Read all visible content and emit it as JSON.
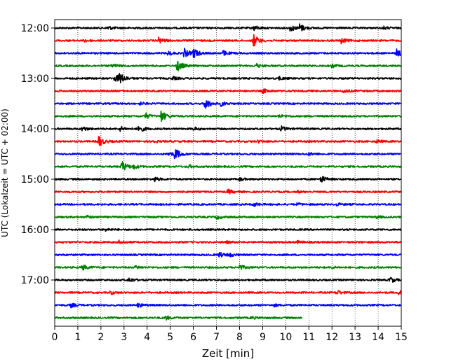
{
  "chart_data": {
    "type": "line",
    "title": "",
    "xlabel": "Zeit  [min]",
    "ylabel": "UTC (Lokalzeit = UTC + 02:00)",
    "xlim": [
      0,
      15
    ],
    "x_ticks": [
      "0",
      "1",
      "2",
      "3",
      "4",
      "5",
      "6",
      "7",
      "8",
      "9",
      "10",
      "11",
      "12",
      "13",
      "14",
      "15"
    ],
    "y_ticks": [
      {
        "label": "12:00",
        "row": 0
      },
      {
        "label": "13:00",
        "row": 4
      },
      {
        "label": "14:00",
        "row": 8
      },
      {
        "label": "15:00",
        "row": 12
      },
      {
        "label": "16:00",
        "row": 16
      },
      {
        "label": "17:00",
        "row": 20
      }
    ],
    "grid": "vertical dotted at each minute",
    "trace_colors": [
      "#000000",
      "#ff0000",
      "#0000ff",
      "#008000"
    ],
    "trace_minutes": 15,
    "traces": [
      {
        "start": "12:00",
        "events": [
          [
            2.3,
            0.5
          ],
          [
            8.6,
            0.7
          ],
          [
            10.2,
            0.9
          ],
          [
            10.6,
            1.0
          ],
          [
            14.2,
            0.4
          ]
        ]
      },
      {
        "start": "12:15",
        "events": [
          [
            1.3,
            0.3
          ],
          [
            4.5,
            0.8
          ],
          [
            8.6,
            1.7
          ],
          [
            12.4,
            0.7
          ]
        ]
      },
      {
        "start": "12:30",
        "events": [
          [
            4.9,
            0.5
          ],
          [
            5.6,
            1.2
          ],
          [
            6.0,
            1.3
          ],
          [
            7.3,
            0.6
          ],
          [
            14.8,
            1.0
          ]
        ]
      },
      {
        "start": "12:45",
        "events": [
          [
            2.5,
            0.5
          ],
          [
            5.3,
            1.6
          ],
          [
            8.7,
            0.6
          ],
          [
            12.0,
            0.4
          ]
        ]
      },
      {
        "start": "13:00",
        "events": [
          [
            2.6,
            1.1
          ],
          [
            2.8,
            1.3
          ],
          [
            5.1,
            0.4
          ],
          [
            9.7,
            0.4
          ]
        ]
      },
      {
        "start": "13:15",
        "events": [
          [
            9.0,
            0.6
          ],
          [
            12.5,
            0.5
          ]
        ]
      },
      {
        "start": "13:30",
        "events": [
          [
            6.5,
            1.6
          ],
          [
            7.2,
            0.6
          ],
          [
            3.7,
            0.3
          ]
        ]
      },
      {
        "start": "13:45",
        "events": [
          [
            3.9,
            0.8
          ],
          [
            4.6,
            1.5
          ],
          [
            9.7,
            0.4
          ]
        ]
      },
      {
        "start": "14:00",
        "events": [
          [
            1.2,
            0.6
          ],
          [
            2.8,
            0.7
          ],
          [
            3.6,
            1.2
          ],
          [
            9.8,
            0.6
          ],
          [
            6.0,
            0.4
          ]
        ]
      },
      {
        "start": "14:15",
        "events": [
          [
            1.9,
            1.5
          ],
          [
            4.2,
            0.4
          ],
          [
            8.8,
            0.3
          ],
          [
            13.9,
            0.4
          ]
        ]
      },
      {
        "start": "14:30",
        "events": [
          [
            5.2,
            1.5
          ],
          [
            4.9,
            0.5
          ],
          [
            11.0,
            0.3
          ]
        ]
      },
      {
        "start": "14:45",
        "events": [
          [
            2.9,
            1.5
          ],
          [
            3.4,
            0.5
          ],
          [
            5.8,
            0.4
          ]
        ]
      },
      {
        "start": "15:00",
        "events": [
          [
            4.3,
            0.6
          ],
          [
            8.0,
            0.4
          ],
          [
            11.5,
            1.0
          ]
        ]
      },
      {
        "start": "15:15",
        "events": [
          [
            7.5,
            0.6
          ],
          [
            10.5,
            0.2
          ]
        ]
      },
      {
        "start": "15:30",
        "events": [
          [
            8.6,
            0.5
          ],
          [
            10.5,
            0.3
          ],
          [
            12.2,
            0.3
          ]
        ]
      },
      {
        "start": "15:45",
        "events": [
          [
            1.4,
            0.3
          ],
          [
            7.0,
            0.5
          ],
          [
            13.9,
            0.3
          ]
        ]
      },
      {
        "start": "16:00",
        "events": [
          [
            2.2,
            0.3
          ]
        ]
      },
      {
        "start": "16:15",
        "events": [
          [
            2.8,
            0.5
          ],
          [
            7.4,
            0.3
          ],
          [
            10.5,
            0.3
          ]
        ]
      },
      {
        "start": "16:30",
        "events": [
          [
            7.1,
            0.7
          ],
          [
            7.5,
            0.6
          ]
        ]
      },
      {
        "start": "16:45",
        "events": [
          [
            1.2,
            0.7
          ],
          [
            3.5,
            0.4
          ],
          [
            8.0,
            0.7
          ],
          [
            12.0,
            0.2
          ]
        ]
      },
      {
        "start": "17:00",
        "events": [
          [
            3.2,
            0.6
          ],
          [
            14.5,
            0.8
          ]
        ]
      },
      {
        "start": "17:15",
        "events": [
          [
            2.4,
            0.4
          ],
          [
            12.2,
            0.6
          ],
          [
            14.9,
            0.5
          ]
        ]
      },
      {
        "start": "17:30",
        "events": [
          [
            0.7,
            0.5
          ],
          [
            3.6,
            0.5
          ],
          [
            9.5,
            0.3
          ]
        ]
      },
      {
        "start": "17:45",
        "end_min": 10.7,
        "events": [
          [
            4.8,
            0.5
          ],
          [
            8.5,
            0.3
          ]
        ]
      }
    ]
  }
}
